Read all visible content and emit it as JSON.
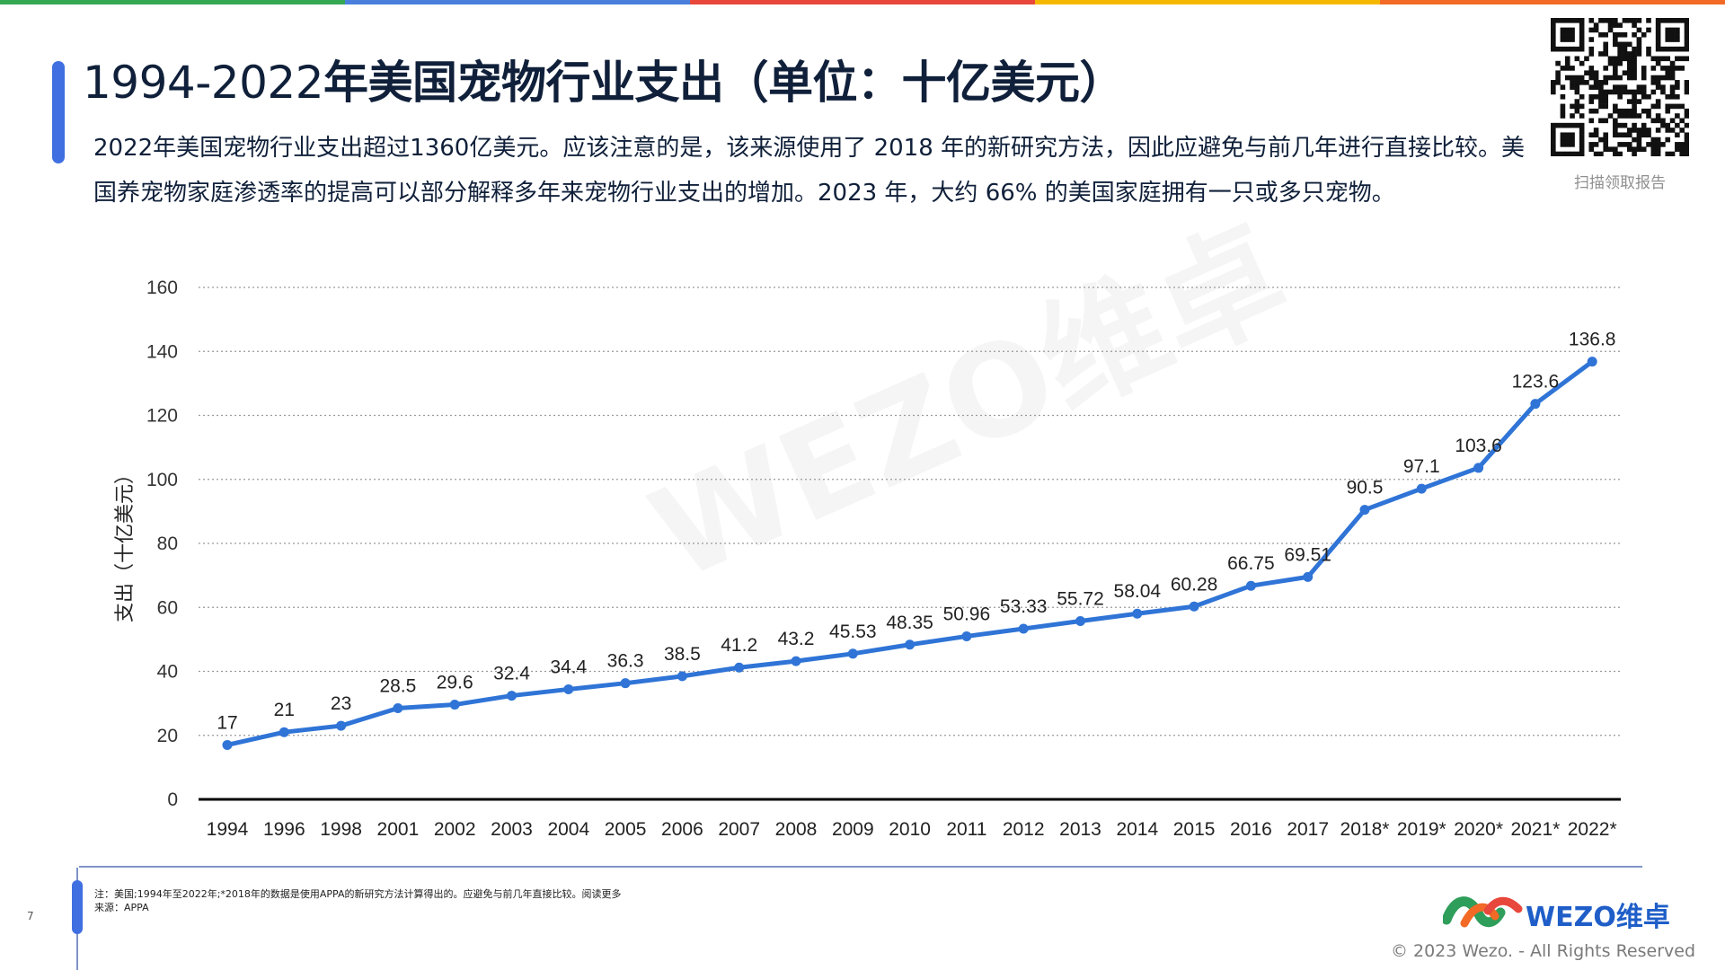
{
  "topbar_colors": [
    "#34a853",
    "#4a7fdc",
    "#e8473c",
    "#f5b800",
    "#f26a26"
  ],
  "header": {
    "title_years": "1994-2022",
    "title_rest": "年美国宠物行业支出（单位：十亿美元）",
    "description": "2022年美国宠物行业支出超过1360亿美元。应该注意的是，该来源使用了 2018 年的新研究方法，因此应避免与前几年进行直接比较。美国养宠物家庭渗透率的提高可以部分解释多年来宠物行业支出的增加。2023 年，大约 66% 的美国家庭拥有一只或多只宠物。"
  },
  "qr": {
    "caption": "扫描领取报告"
  },
  "watermark": "WEZO维卓",
  "footer": {
    "page_number": "7",
    "note": "注：美国;1994年至2022年;*2018年的数据是使用APPA的新研究方法计算得出的。应避免与前几年直接比较。阅读更多",
    "source": "来源：APPA",
    "logo_text": "WEZO维卓",
    "copyright": "© 2023 Wezo. - All Rights Reserved"
  },
  "chart_data": {
    "type": "line",
    "ylabel": "支出（十亿美元）",
    "xlabel": "",
    "ylim": [
      0,
      160
    ],
    "yticks": [
      0,
      20,
      40,
      60,
      80,
      100,
      120,
      140,
      160
    ],
    "grid": "horizontal-dotted",
    "color": "#2f74d6",
    "categories": [
      "1994",
      "1996",
      "1998",
      "2001",
      "2002",
      "2003",
      "2004",
      "2005",
      "2006",
      "2007",
      "2008",
      "2009",
      "2010",
      "2011",
      "2012",
      "2013",
      "2014",
      "2015",
      "2016",
      "2017",
      "2018*",
      "2019*",
      "2020*",
      "2021*",
      "2022*"
    ],
    "values": [
      17,
      21,
      23,
      28.5,
      29.6,
      32.4,
      34.4,
      36.3,
      38.5,
      41.2,
      43.2,
      45.53,
      48.35,
      50.96,
      53.33,
      55.72,
      58.04,
      60.28,
      66.75,
      69.51,
      90.5,
      97.1,
      103.6,
      123.6,
      136.8
    ],
    "labels": [
      "17",
      "21",
      "23",
      "28.5",
      "29.6",
      "32.4",
      "34.4",
      "36.3",
      "38.5",
      "41.2",
      "43.2",
      "45.53",
      "48.35",
      "50.96",
      "53.33",
      "55.72",
      "58.04",
      "60.28",
      "66.75",
      "69.51",
      "90.5",
      "97.1",
      "103.6",
      "123.6",
      "136.8"
    ]
  }
}
